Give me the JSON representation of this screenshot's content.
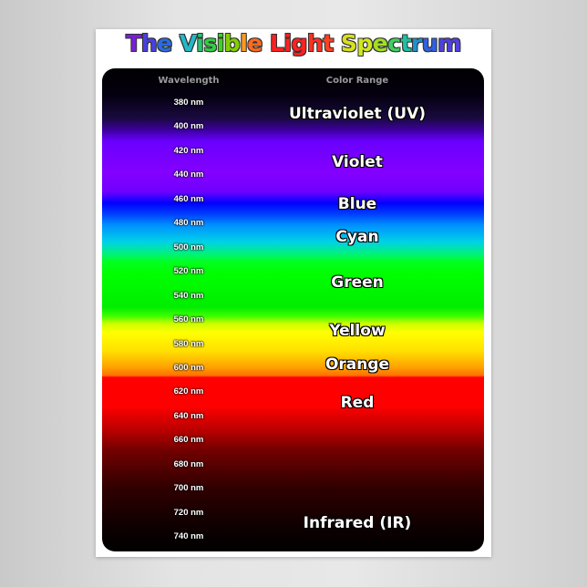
{
  "title": "The Visible Light Spectrum",
  "title_letter_colors": [
    "#7a1fd6",
    "#4a3fe0",
    "#2a6ae0",
    "#ffffff",
    "#22b8c8",
    "#22c870",
    "#30d040",
    "#40d020",
    "#80d000",
    "#ff9a20",
    "#ff6a20",
    "#ffffff",
    "#ff2020",
    "#ff2020",
    "#ff2020",
    "#ff3020",
    "#ff4020",
    "#ffffff",
    "#d8e020",
    "#d0e820",
    "#a0e020",
    "#40d060",
    "#20c0a0",
    "#2090d0",
    "#3060e0",
    "#5040e0"
  ],
  "headers": {
    "wavelength": "Wavelength",
    "color_range": "Color Range"
  },
  "wavelengths": [
    "380 nm",
    "400 nm",
    "420 nm",
    "440 nm",
    "460 nm",
    "480 nm",
    "500 nm",
    "520 nm",
    "540 nm",
    "560 nm",
    "580 nm",
    "600 nm",
    "620 nm",
    "640 nm",
    "660 nm",
    "680 nm",
    "700 nm",
    "720 nm",
    "740 nm"
  ],
  "color_ranges": [
    "Ultraviolet (UV)",
    "Violet",
    "Blue",
    "Cyan",
    "Green",
    "Yellow",
    "Orange",
    "Red",
    "Infrared (IR)"
  ]
}
